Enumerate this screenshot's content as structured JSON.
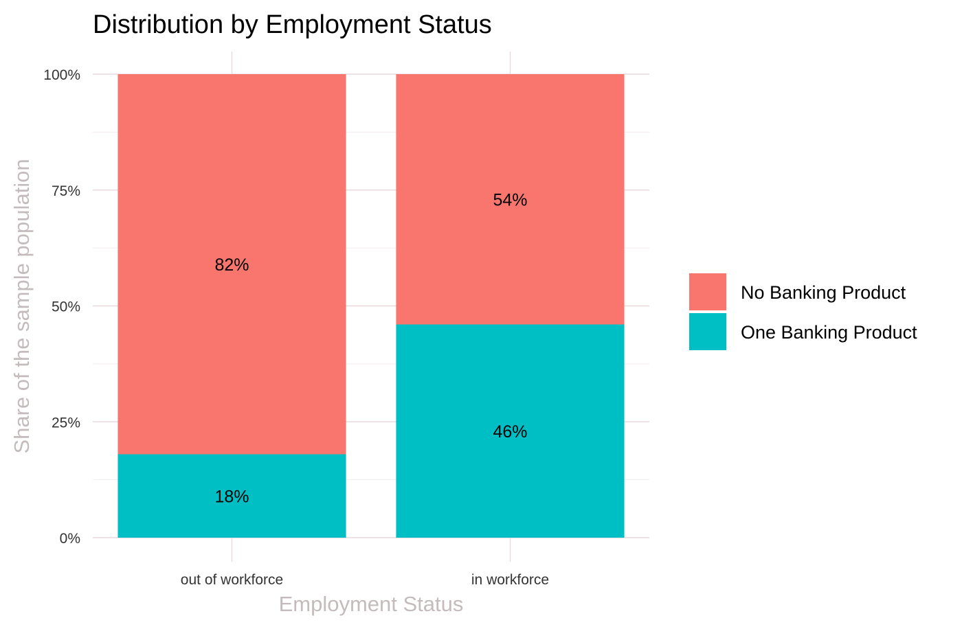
{
  "chart_data": {
    "type": "bar",
    "stacked": true,
    "title": "Distribution by Employment Status",
    "xlabel": "Employment Status",
    "ylabel": "Share of the sample population",
    "categories": [
      "out of workforce",
      "in workforce"
    ],
    "series": [
      {
        "name": "One Banking Product",
        "values": [
          18,
          46
        ],
        "labels": [
          "18%",
          "46%"
        ],
        "color": "#00BFC4"
      },
      {
        "name": "No Banking Product",
        "values": [
          82,
          54
        ],
        "labels": [
          "82%",
          "54%"
        ],
        "color": "#F8766D"
      }
    ],
    "y_ticks": [
      0,
      25,
      50,
      75,
      100
    ],
    "y_tick_labels": [
      "0%",
      "25%",
      "50%",
      "75%",
      "100%"
    ],
    "ylim": [
      0,
      100
    ],
    "legend": {
      "placement": "right",
      "entries": [
        {
          "name": "No Banking Product",
          "color": "#F8766D"
        },
        {
          "name": "One Banking Product",
          "color": "#00BFC4"
        }
      ]
    },
    "grid": true
  }
}
